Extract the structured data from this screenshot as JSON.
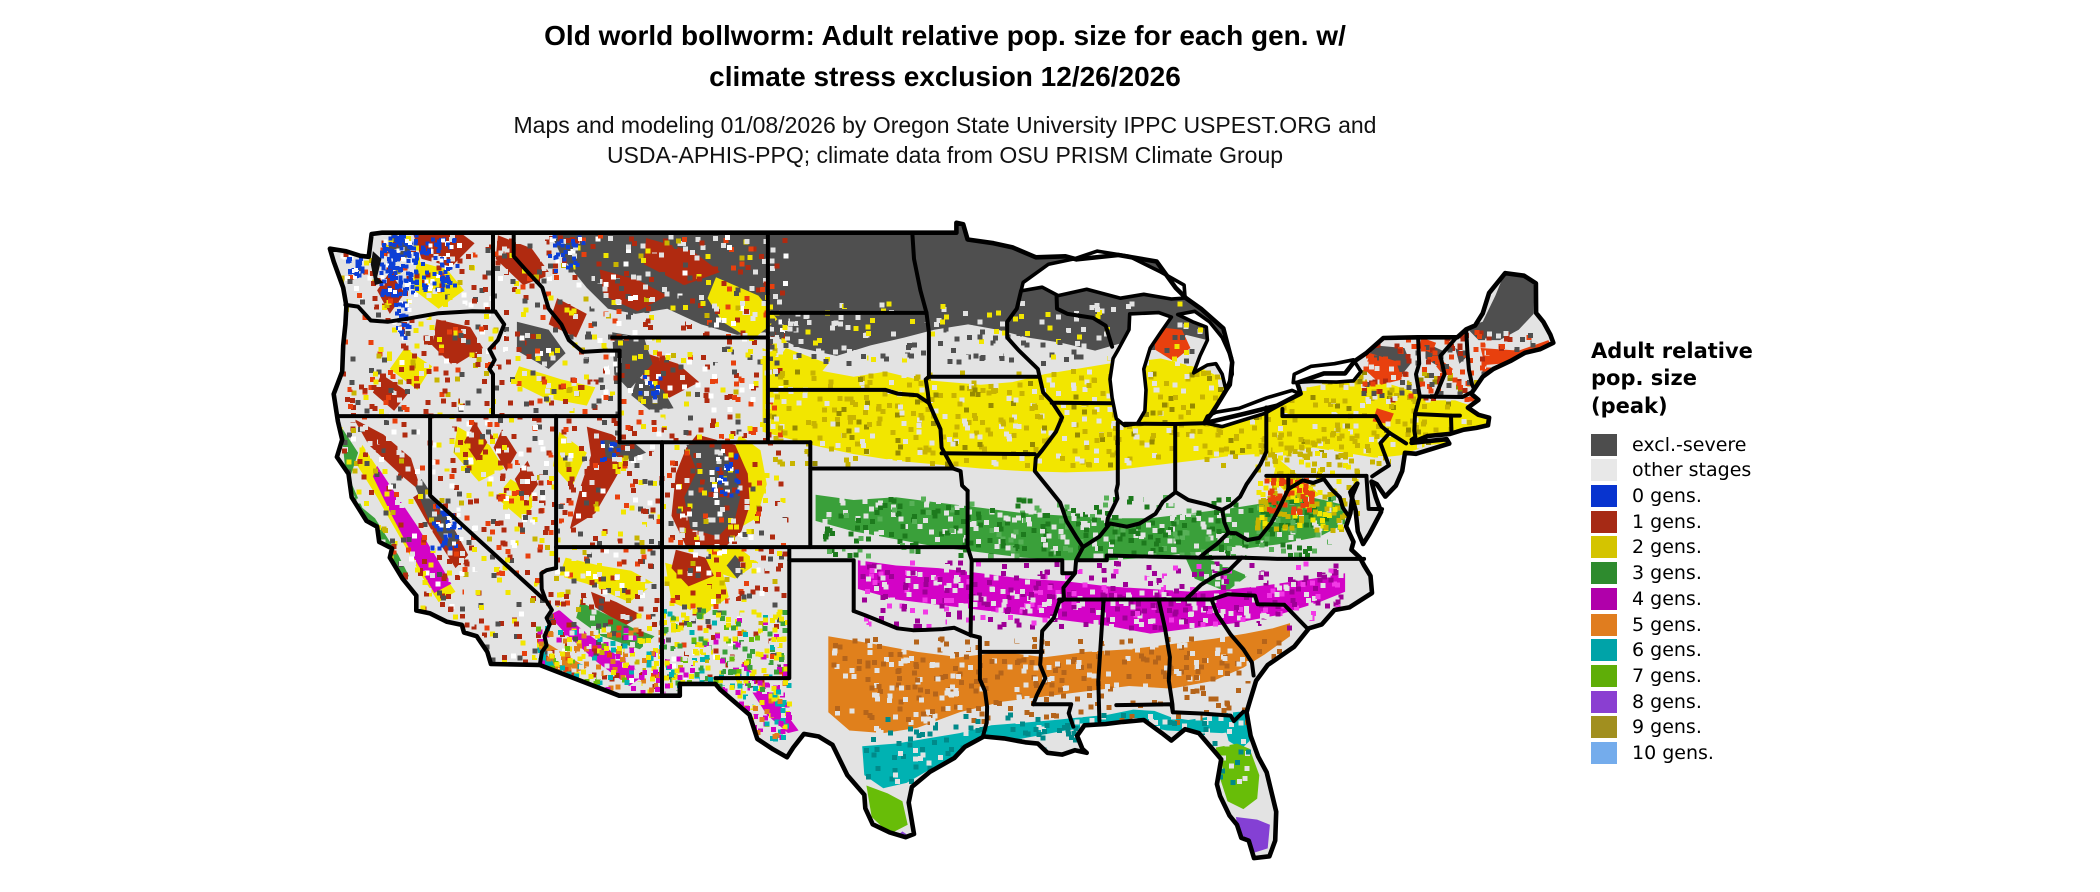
{
  "title": {
    "line1": "Old world bollworm: Adult relative pop. size for each gen. w/",
    "line2": "climate stress exclusion 12/26/2026"
  },
  "subtitle": {
    "line1": "Maps and modeling 01/08/2026 by Oregon State University IPPC USPEST.ORG and",
    "line2": "USDA-APHIS-PPQ; climate data from OSU PRISM Climate Group"
  },
  "legend": {
    "title_lines": [
      "Adult relative",
      "pop. size",
      "(peak)"
    ],
    "items": [
      {
        "label": "excl.-severe",
        "color": "#4d4d4d"
      },
      {
        "label": "other stages",
        "color": "#e8e8e8"
      },
      {
        "label": "0 gens.",
        "color": "#0834cf"
      },
      {
        "label": "1 gens.",
        "color": "#a62a15"
      },
      {
        "label": "2 gens.",
        "color": "#d4c400"
      },
      {
        "label": "3 gens.",
        "color": "#2e8b2e"
      },
      {
        "label": "4 gens.",
        "color": "#b000aa"
      },
      {
        "label": "5 gens.",
        "color": "#e07d1f"
      },
      {
        "label": "6 gens.",
        "color": "#00a3a8"
      },
      {
        "label": "7 gens.",
        "color": "#5fae08"
      },
      {
        "label": "8 gens.",
        "color": "#8a3fd1"
      },
      {
        "label": "9 gens.",
        "color": "#a18f1f"
      },
      {
        "label": "10 gens.",
        "color": "#74acec"
      }
    ]
  },
  "map": {
    "colors": {
      "other": "#e3e3e3",
      "excl": "#4f4f4f",
      "g0": "#0d3fd6",
      "g1": "#b02a10",
      "g1b": "#e8400e",
      "g2": "#f2e600",
      "g2d": "#c8b400",
      "g2dd": "#968a00",
      "g3": "#3aa03a",
      "g3d": "#1d7a1d",
      "g3b": "#58b158",
      "g4": "#d303c6",
      "g4d": "#9e0096",
      "g4b": "#f23ae6",
      "g5": "#e0801c",
      "g5d": "#b5641a",
      "g6": "#00b2b2",
      "g6d": "#008a8a",
      "g7": "#68bd08",
      "g8": "#8440d4",
      "g9": "#a6921e",
      "g10": "#74acec",
      "water": "#ffffff",
      "border": "#000000",
      "sound": "#101010"
    }
  }
}
